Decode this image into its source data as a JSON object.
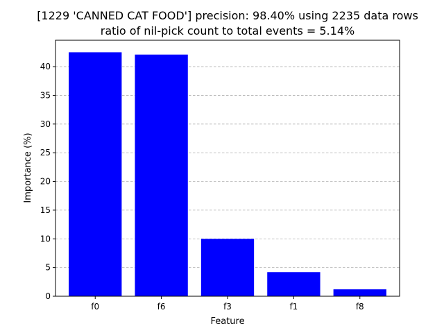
{
  "chart_data": {
    "type": "bar",
    "title_line1": "[1229 'CANNED CAT FOOD'] precision: 98.40% using 2235 data rows",
    "title_line2": "ratio of nil-pick count to total events = 5.14%",
    "xlabel": "Feature",
    "ylabel": "Importance (%)",
    "categories": [
      "f0",
      "f6",
      "f3",
      "f1",
      "f8"
    ],
    "values": [
      42.5,
      42.1,
      10.0,
      4.2,
      1.2
    ],
    "ylim": [
      0,
      44.6
    ],
    "yticks": [
      0,
      5,
      10,
      15,
      20,
      25,
      30,
      35,
      40
    ],
    "grid": "y-dashed",
    "bar_color": "#0000ff"
  }
}
